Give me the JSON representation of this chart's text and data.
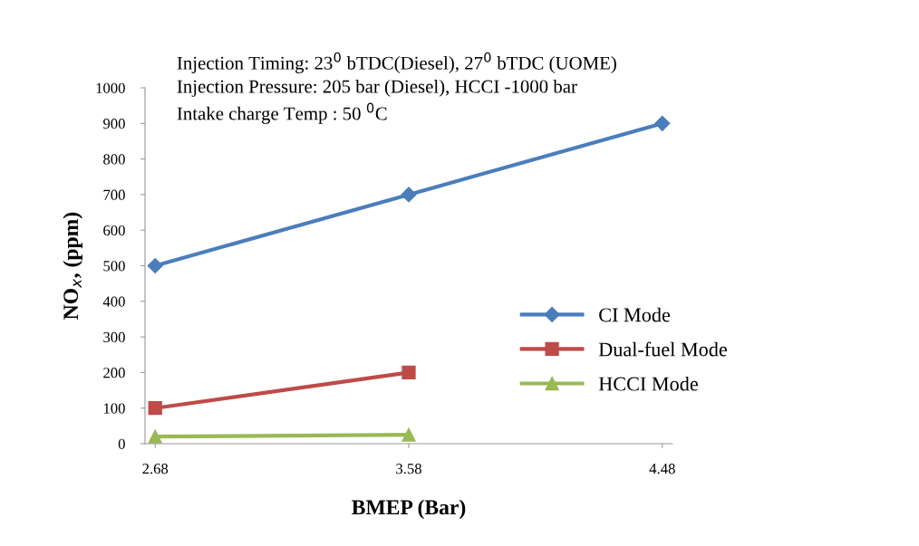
{
  "chart_data": {
    "type": "line",
    "xlabel": "BMEP (Bar)",
    "ylabel": "NO$_{x}$, (ppm)",
    "categories": [
      "2.68",
      "3.58",
      "4.48"
    ],
    "ylim": [
      0,
      1000
    ],
    "yticks": [
      0,
      100,
      200,
      300,
      400,
      500,
      600,
      700,
      800,
      900,
      1000
    ],
    "grid": false,
    "legend": "right",
    "annotations": [
      "Injection Timing: 23$^{0}$ bTDC(Diesel), 27$^{0}$ bTDC (UOME)",
      "Injection Pressure: 205 bar (Diesel), HCCI -1000 bar",
      "Intake charge Temp : 50 $^{0}$C"
    ],
    "series": [
      {
        "name": "CI Mode",
        "color": "#4a7ebb",
        "marker": "diamond",
        "values": [
          500,
          700,
          900
        ]
      },
      {
        "name": "Dual-fuel Mode",
        "color": "#be4b48",
        "marker": "square",
        "values": [
          100,
          200,
          null
        ]
      },
      {
        "name": "HCCI Mode",
        "color": "#98b954",
        "marker": "triangle",
        "values": [
          20,
          25,
          null
        ]
      }
    ]
  }
}
